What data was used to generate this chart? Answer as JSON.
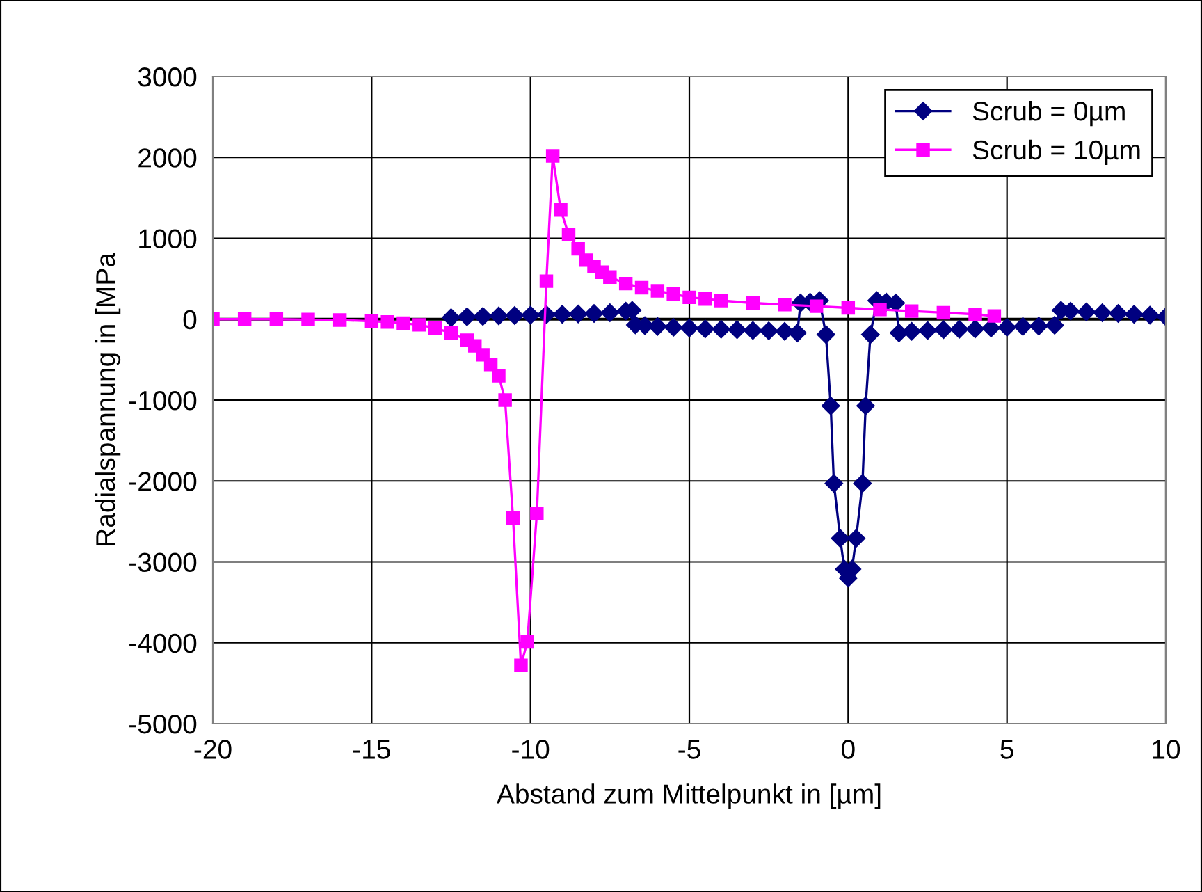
{
  "chart_data": {
    "type": "line",
    "xlabel": "Abstand zum Mittelpunkt in [µm]",
    "ylabel": "Radialspannung in [MPa",
    "xlim": [
      -20,
      10
    ],
    "xticks": [
      -20,
      -15,
      -10,
      -5,
      0,
      5,
      10
    ],
    "ylim": [
      -5000,
      3000
    ],
    "yticks": [
      -5000,
      -4000,
      -3000,
      -2000,
      -1000,
      0,
      1000,
      2000,
      3000
    ],
    "grid": true,
    "legend": "top right",
    "series": [
      {
        "name": "Scrub = 0µm",
        "color": "#000080",
        "marker": "diamond",
        "x": [
          -12.5,
          -12,
          -11.5,
          -11,
          -10.5,
          -10,
          -9.5,
          -9,
          -8.5,
          -8,
          -7.5,
          -7,
          -6.8,
          -6.7,
          -6.4,
          -6,
          -5.5,
          -5,
          -4.5,
          -4,
          -3.5,
          -3,
          -2.5,
          -2,
          -1.6,
          -1.5,
          -1.2,
          -0.9,
          -0.7,
          -0.55,
          -0.45,
          -0.25,
          -0.12,
          0,
          0.12,
          0.25,
          0.45,
          0.55,
          0.7,
          0.9,
          1.2,
          1.5,
          1.6,
          2,
          2.5,
          3,
          3.5,
          4,
          4.5,
          5,
          5.5,
          6,
          6.5,
          6.7,
          7,
          7.5,
          8,
          8.5,
          9,
          9.5,
          10
        ],
        "values": [
          20,
          30,
          35,
          40,
          45,
          50,
          55,
          60,
          65,
          70,
          80,
          100,
          110,
          -70,
          -80,
          -90,
          -100,
          -110,
          -120,
          -125,
          -130,
          -140,
          -145,
          -150,
          -170,
          200,
          210,
          230,
          -190,
          -1070,
          -2030,
          -2710,
          -3090,
          -3200,
          -3090,
          -2710,
          -2030,
          -1070,
          -190,
          230,
          210,
          200,
          -170,
          -150,
          -140,
          -130,
          -125,
          -120,
          -110,
          -100,
          -90,
          -85,
          -75,
          110,
          100,
          90,
          80,
          70,
          60,
          50,
          30
        ]
      },
      {
        "name": "Scrub = 10µm",
        "color": "#ff00ff",
        "marker": "square",
        "x": [
          -20,
          -19,
          -18,
          -17,
          -16,
          -15,
          -14.5,
          -14,
          -13.5,
          -13,
          -12.5,
          -12,
          -11.75,
          -11.5,
          -11.25,
          -11,
          -10.8,
          -10.55,
          -10.3,
          -10.1,
          -9.8,
          -9.5,
          -9.3,
          -9.05,
          -8.8,
          -8.5,
          -8.25,
          -8,
          -7.75,
          -7.5,
          -7,
          -6.5,
          -6,
          -5.5,
          -5,
          -4.5,
          -4,
          -3,
          -2,
          -1,
          0,
          1,
          2,
          3,
          4,
          4.6
        ],
        "values": [
          0,
          0,
          0,
          -5,
          -10,
          -25,
          -35,
          -50,
          -70,
          -110,
          -170,
          -260,
          -330,
          -440,
          -560,
          -700,
          -1000,
          -2460,
          -4280,
          -3990,
          -2400,
          470,
          2020,
          1350,
          1050,
          870,
          730,
          650,
          580,
          520,
          440,
          390,
          350,
          310,
          270,
          250,
          230,
          200,
          180,
          160,
          140,
          120,
          100,
          80,
          60,
          40
        ]
      }
    ]
  }
}
